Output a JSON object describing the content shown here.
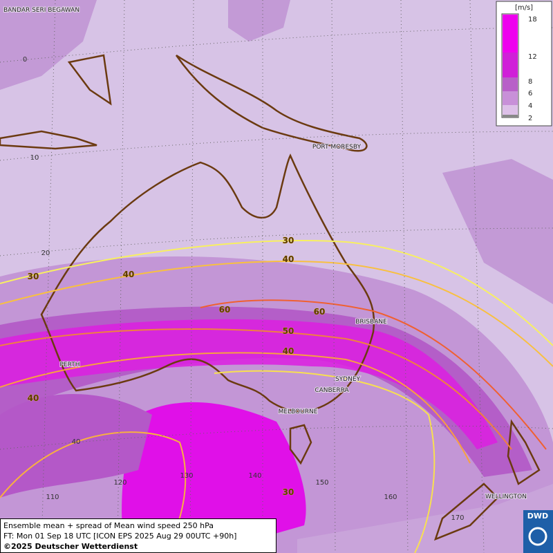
{
  "cities": [
    "BANDAR SERI BEGAWAN",
    "PORT MORESBY",
    "BRISBANE",
    "PERTH",
    "SYDNEY",
    "CANBERRA",
    "MELBOURNE",
    "WELLINGTON"
  ],
  "grid_labels": [
    "0",
    "10",
    "20",
    "40",
    "110",
    "120",
    "130",
    "140",
    "150",
    "160",
    "170"
  ],
  "contour_labels": [
    "30",
    "40",
    "30",
    "40",
    "60",
    "60",
    "50",
    "40",
    "40",
    "30"
  ],
  "legend": {
    "unit": "[m/s]",
    "ticks": [
      "18",
      "12",
      "8",
      "6",
      "4",
      "2"
    ]
  },
  "caption": [
    "Ensemble mean + spread of Mean wind speed 250 hPa",
    "FT: Mon 01 Sep 18 UTC [ICON EPS 2025 Aug 29 00UTC +90h]",
    "©2025 Deutscher Wetterdienst"
  ],
  "logo": "DWD"
}
